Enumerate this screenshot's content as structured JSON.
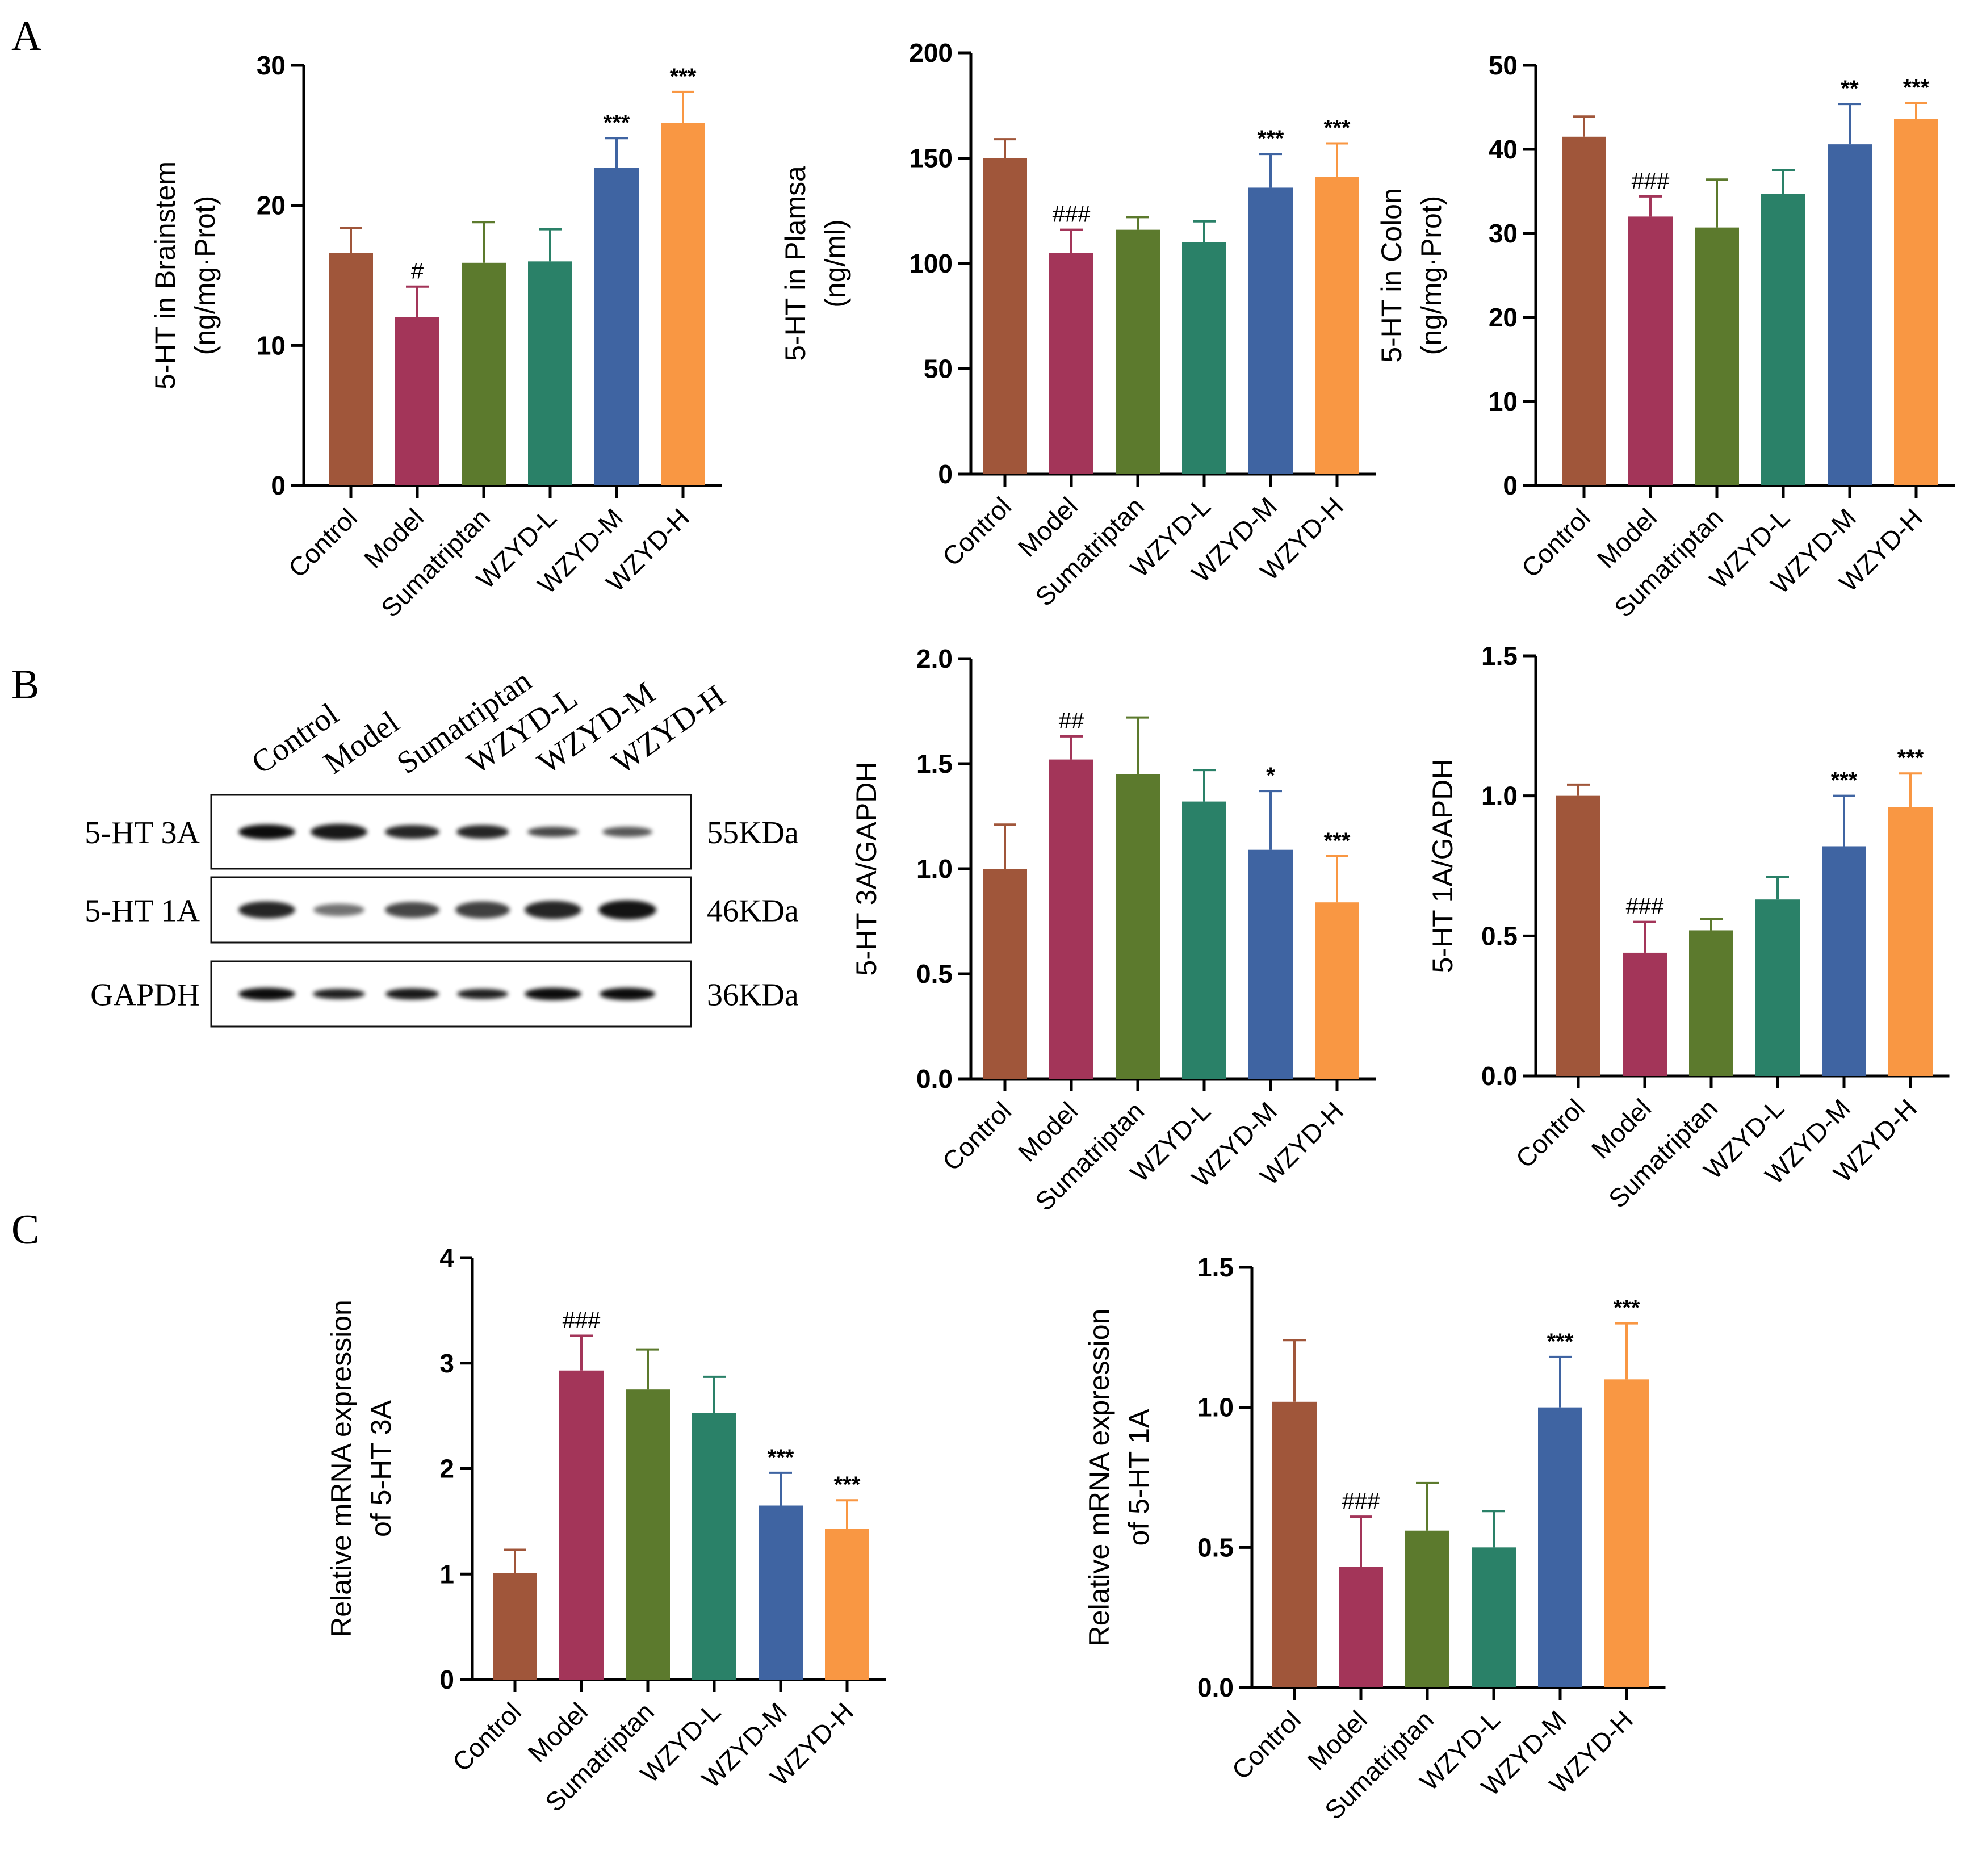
{
  "panel_letters": [
    "A",
    "B",
    "C"
  ],
  "colors": {
    "Control": "#A0563A",
    "Model": "#A33559",
    "Sumatriptan": "#5C7A2D",
    "WZYD-L": "#2A8168",
    "WZYD-M": "#3F64A2",
    "WZYD-H": "#F99743"
  },
  "blot": {
    "lanes": [
      "Control",
      "Model",
      "Sumatriptan",
      "WZYD-L",
      "WZYD-M",
      "WZYD-H"
    ],
    "rows": [
      {
        "label": "5-HT 3A",
        "kda": "55KDa"
      },
      {
        "label": "5-HT 1A",
        "kda": "46KDa"
      },
      {
        "label": "GAPDH",
        "kda": "36KDa"
      }
    ]
  },
  "chart_data": [
    {
      "id": "a1",
      "type": "bar",
      "categories": [
        "Control",
        "Model",
        "Sumatriptan",
        "WZYD-L",
        "WZYD-M",
        "WZYD-H"
      ],
      "values": [
        16.6,
        12.0,
        15.9,
        16.0,
        22.7,
        25.9
      ],
      "errors": [
        1.8,
        2.2,
        2.9,
        2.3,
        2.1,
        2.2
      ],
      "sig": [
        "",
        "#",
        "",
        "",
        "***",
        "***"
      ],
      "ylabel_lines": [
        "5-HT in Brainstem",
        "(ng/mg·Prot)"
      ],
      "ylim": [
        0,
        30
      ],
      "yticks": [
        0,
        10,
        20,
        30
      ],
      "ytick_labels": [
        "0",
        "10",
        "20",
        "30"
      ],
      "title": "",
      "xlabel": ""
    },
    {
      "id": "a2",
      "type": "bar",
      "categories": [
        "Control",
        "Model",
        "Sumatriptan",
        "WZYD-L",
        "WZYD-M",
        "WZYD-H"
      ],
      "values": [
        150,
        105,
        116,
        110,
        136,
        141
      ],
      "errors": [
        9,
        11,
        6,
        10,
        16,
        16
      ],
      "sig": [
        "",
        "###",
        "",
        "",
        "***",
        "***"
      ],
      "ylabel_lines": [
        "5-HT in Plamsa",
        "(ng/ml)"
      ],
      "ylim": [
        0,
        200
      ],
      "yticks": [
        0,
        50,
        100,
        150,
        200
      ],
      "ytick_labels": [
        "0",
        "50",
        "100",
        "150",
        "200"
      ],
      "title": "",
      "xlabel": ""
    },
    {
      "id": "a3",
      "type": "bar",
      "categories": [
        "Control",
        "Model",
        "Sumatriptan",
        "WZYD-L",
        "WZYD-M",
        "WZYD-H"
      ],
      "values": [
        41.5,
        32.0,
        30.7,
        34.7,
        40.6,
        43.6
      ],
      "errors": [
        2.4,
        2.4,
        5.7,
        2.8,
        4.8,
        1.9
      ],
      "sig": [
        "",
        "###",
        "",
        "",
        "**",
        "***"
      ],
      "ylabel_lines": [
        "5-HT in Colon",
        "(ng/mg·Prot)"
      ],
      "ylim": [
        0,
        50
      ],
      "yticks": [
        0,
        10,
        20,
        30,
        40,
        50
      ],
      "ytick_labels": [
        "0",
        "10",
        "20",
        "30",
        "40",
        "50"
      ],
      "title": "",
      "xlabel": ""
    },
    {
      "id": "b1",
      "type": "bar",
      "categories": [
        "Control",
        "Model",
        "Sumatriptan",
        "WZYD-L",
        "WZYD-M",
        "WZYD-H"
      ],
      "values": [
        1.0,
        1.52,
        1.45,
        1.32,
        1.09,
        0.84
      ],
      "errors": [
        0.21,
        0.11,
        0.27,
        0.15,
        0.28,
        0.22
      ],
      "sig": [
        "",
        "##",
        "",
        "",
        "*",
        "***"
      ],
      "ylabel_lines": [
        "5-HT 3A/GAPDH"
      ],
      "ylim": [
        0,
        2.0
      ],
      "yticks": [
        0,
        0.5,
        1.0,
        1.5,
        2.0
      ],
      "ytick_labels": [
        "0.0",
        "0.5",
        "1.0",
        "1.5",
        "2.0"
      ],
      "title": "",
      "xlabel": ""
    },
    {
      "id": "b2",
      "type": "bar",
      "categories": [
        "Control",
        "Model",
        "Sumatriptan",
        "WZYD-L",
        "WZYD-M",
        "WZYD-H"
      ],
      "values": [
        1.0,
        0.44,
        0.52,
        0.63,
        0.82,
        0.96
      ],
      "errors": [
        0.04,
        0.11,
        0.04,
        0.08,
        0.18,
        0.12
      ],
      "sig": [
        "",
        "###",
        "",
        "",
        "***",
        "***"
      ],
      "ylabel_lines": [
        "5-HT 1A/GAPDH"
      ],
      "ylim": [
        0,
        1.5
      ],
      "yticks": [
        0,
        0.5,
        1.0,
        1.5
      ],
      "ytick_labels": [
        "0.0",
        "0.5",
        "1.0",
        "1.5"
      ],
      "title": "",
      "xlabel": ""
    },
    {
      "id": "c1",
      "type": "bar",
      "categories": [
        "Control",
        "Model",
        "Sumatriptan",
        "WZYD-L",
        "WZYD-M",
        "WZYD-H"
      ],
      "values": [
        1.01,
        2.93,
        2.75,
        2.53,
        1.65,
        1.43
      ],
      "errors": [
        0.22,
        0.33,
        0.38,
        0.34,
        0.31,
        0.27
      ],
      "sig": [
        "",
        "###",
        "",
        "",
        "***",
        "***"
      ],
      "ylabel_lines": [
        "Relative mRNA expression",
        "of 5-HT 3A"
      ],
      "ylim": [
        0,
        4
      ],
      "yticks": [
        0,
        1,
        2,
        3,
        4
      ],
      "ytick_labels": [
        "0",
        "1",
        "2",
        "3",
        "4"
      ],
      "title": "",
      "xlabel": ""
    },
    {
      "id": "c2",
      "type": "bar",
      "categories": [
        "Control",
        "Model",
        "Sumatriptan",
        "WZYD-L",
        "WZYD-M",
        "WZYD-H"
      ],
      "values": [
        1.02,
        0.43,
        0.56,
        0.5,
        1.0,
        1.1
      ],
      "errors": [
        0.22,
        0.18,
        0.17,
        0.13,
        0.18,
        0.2
      ],
      "sig": [
        "",
        "###",
        "",
        "",
        "***",
        "***"
      ],
      "ylabel_lines": [
        "Relative mRNA expression",
        "of 5-HT 1A"
      ],
      "ylim": [
        0,
        1.5
      ],
      "yticks": [
        0,
        0.5,
        1.0,
        1.5
      ],
      "ytick_labels": [
        "0.0",
        "0.5",
        "1.0",
        "1.5"
      ],
      "title": "",
      "xlabel": ""
    }
  ]
}
